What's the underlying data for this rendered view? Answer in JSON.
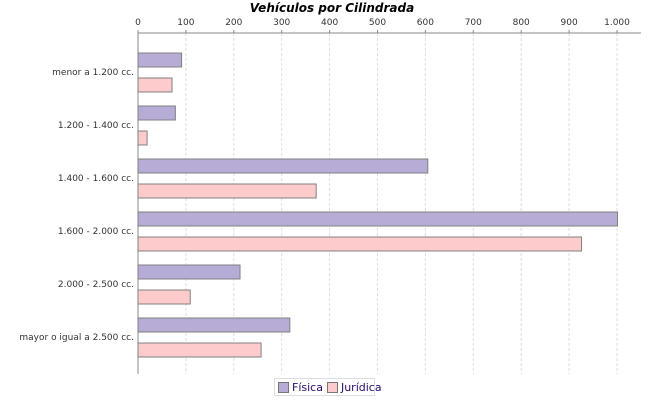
{
  "chart_data": {
    "type": "bar",
    "orientation": "horizontal",
    "title": "Vehículos por Cilindrada",
    "xlabel": "",
    "ylabel": "",
    "categories": [
      "menor a 1.200 cc.",
      "1.200 - 1.400 cc.",
      "1.400 - 1.600 cc.",
      "1.600 - 2.000 cc.",
      "2.000 - 2.500 cc.",
      "mayor o igual a 2.500 cc."
    ],
    "series": [
      {
        "name": "Física",
        "color": "#b6acd6",
        "values": [
          91,
          78,
          605,
          1001,
          213,
          317
        ]
      },
      {
        "name": "Jurídica",
        "color": "#fdcbcb",
        "values": [
          71,
          19,
          372,
          926,
          109,
          257
        ]
      }
    ],
    "xlim": [
      0,
      1050
    ],
    "xticks": [
      0,
      100,
      200,
      300,
      400,
      500,
      600,
      700,
      800,
      900,
      1000
    ],
    "xtick_labels": [
      "0",
      "100",
      "200",
      "300",
      "400",
      "500",
      "600",
      "700",
      "800",
      "900",
      "1.000"
    ],
    "x_axis_position": "top",
    "grid": true,
    "legend": "bottom"
  }
}
